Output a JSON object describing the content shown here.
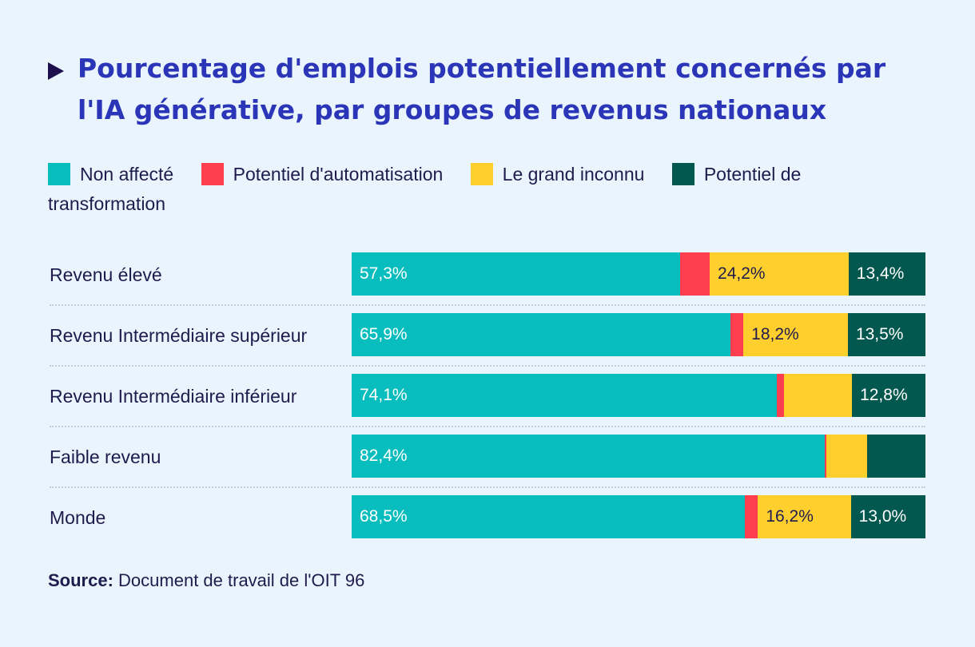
{
  "title": "Pourcentage d'emplois potentiellement concernés par l'IA générative, par groupes de revenus nationaux",
  "icons": {
    "title_marker": "triangle-right-icon"
  },
  "source": {
    "prefix": "Source:",
    "text": "Document de travail de l'OIT 96"
  },
  "chart_data": {
    "type": "bar",
    "orientation": "horizontal",
    "stacked": true,
    "unit": "%",
    "legend_position": "top",
    "grid": false,
    "categories": [
      "Revenu élevé",
      "Revenu Intermédiaire supérieur",
      "Revenu Intermédiaire inférieur",
      "Faible revenu",
      "Monde"
    ],
    "series": [
      {
        "name": "Non affecté",
        "color": "#08bdbd",
        "label_color": "#ffffff",
        "values": [
          57.3,
          65.9,
          74.1,
          82.4,
          68.5
        ],
        "labels": [
          "57,3%",
          "65,9%",
          "74,1%",
          "82,4%",
          "68,5%"
        ]
      },
      {
        "name": "Potentiel d'automatisation",
        "color": "#ff3f4f",
        "label_color": "#ffffff",
        "values": [
          5.1,
          2.3,
          1.3,
          0.4,
          2.3
        ],
        "labels": [
          "",
          "",
          "",
          "",
          ""
        ]
      },
      {
        "name": "Le grand inconnu",
        "color": "#ffcf2e",
        "label_color": "#1f1b4d",
        "values": [
          24.2,
          18.2,
          11.8,
          7.0,
          16.2
        ],
        "labels": [
          "24,2%",
          "18,2%",
          "",
          "",
          "16,2%"
        ]
      },
      {
        "name": "Potentiel de transformation",
        "color": "#02574f",
        "label_color": "#ffffff",
        "values": [
          13.4,
          13.5,
          12.8,
          10.2,
          13.0
        ],
        "labels": [
          "13,4%",
          "13,5%",
          "12,8%",
          "",
          "13,0%"
        ]
      }
    ],
    "xlim": [
      0,
      100
    ]
  }
}
